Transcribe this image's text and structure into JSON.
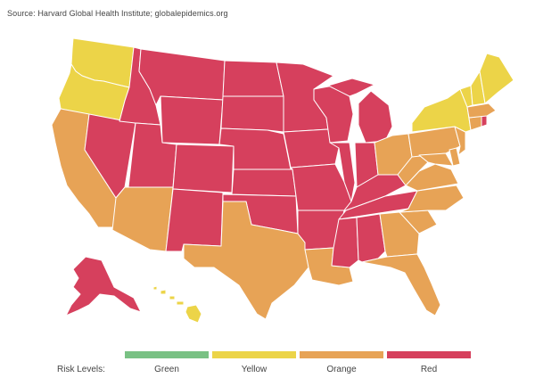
{
  "source": "Source: Harvard Global Health Institute; globalepidemics.org",
  "colors": {
    "green": "#79c184",
    "yellow": "#ecd448",
    "orange": "#e7a356",
    "red": "#d6405d",
    "border": "#ffffff"
  },
  "legend": {
    "title": "Risk Levels:",
    "items": [
      {
        "label": "Green",
        "color": "#79c184"
      },
      {
        "label": "Yellow",
        "color": "#ecd448"
      },
      {
        "label": "Orange",
        "color": "#e7a356"
      },
      {
        "label": "Red",
        "color": "#d6405d"
      }
    ]
  },
  "states": {
    "WA": "yellow",
    "OR": "yellow",
    "CA": "orange",
    "NV": "red",
    "ID": "red",
    "MT": "red",
    "WY": "red",
    "UT": "red",
    "AZ": "orange",
    "CO": "red",
    "NM": "red",
    "ND": "red",
    "SD": "red",
    "NE": "red",
    "KS": "red",
    "OK": "red",
    "TX": "orange",
    "MN": "red",
    "IA": "red",
    "MO": "red",
    "AR": "red",
    "LA": "orange",
    "WI": "red",
    "IL": "red",
    "MS": "red",
    "MI": "red",
    "IN": "red",
    "KY": "red",
    "TN": "red",
    "AL": "red",
    "OH": "orange",
    "WV": "orange",
    "VA": "orange",
    "NC": "orange",
    "SC": "orange",
    "GA": "orange",
    "FL": "orange",
    "PA": "orange",
    "NY": "yellow",
    "VT": "yellow",
    "NH": "yellow",
    "ME": "yellow",
    "MA": "orange",
    "RI": "red",
    "CT": "orange",
    "NJ": "orange",
    "DE": "orange",
    "MD": "orange",
    "AK": "red",
    "HI": "yellow"
  }
}
